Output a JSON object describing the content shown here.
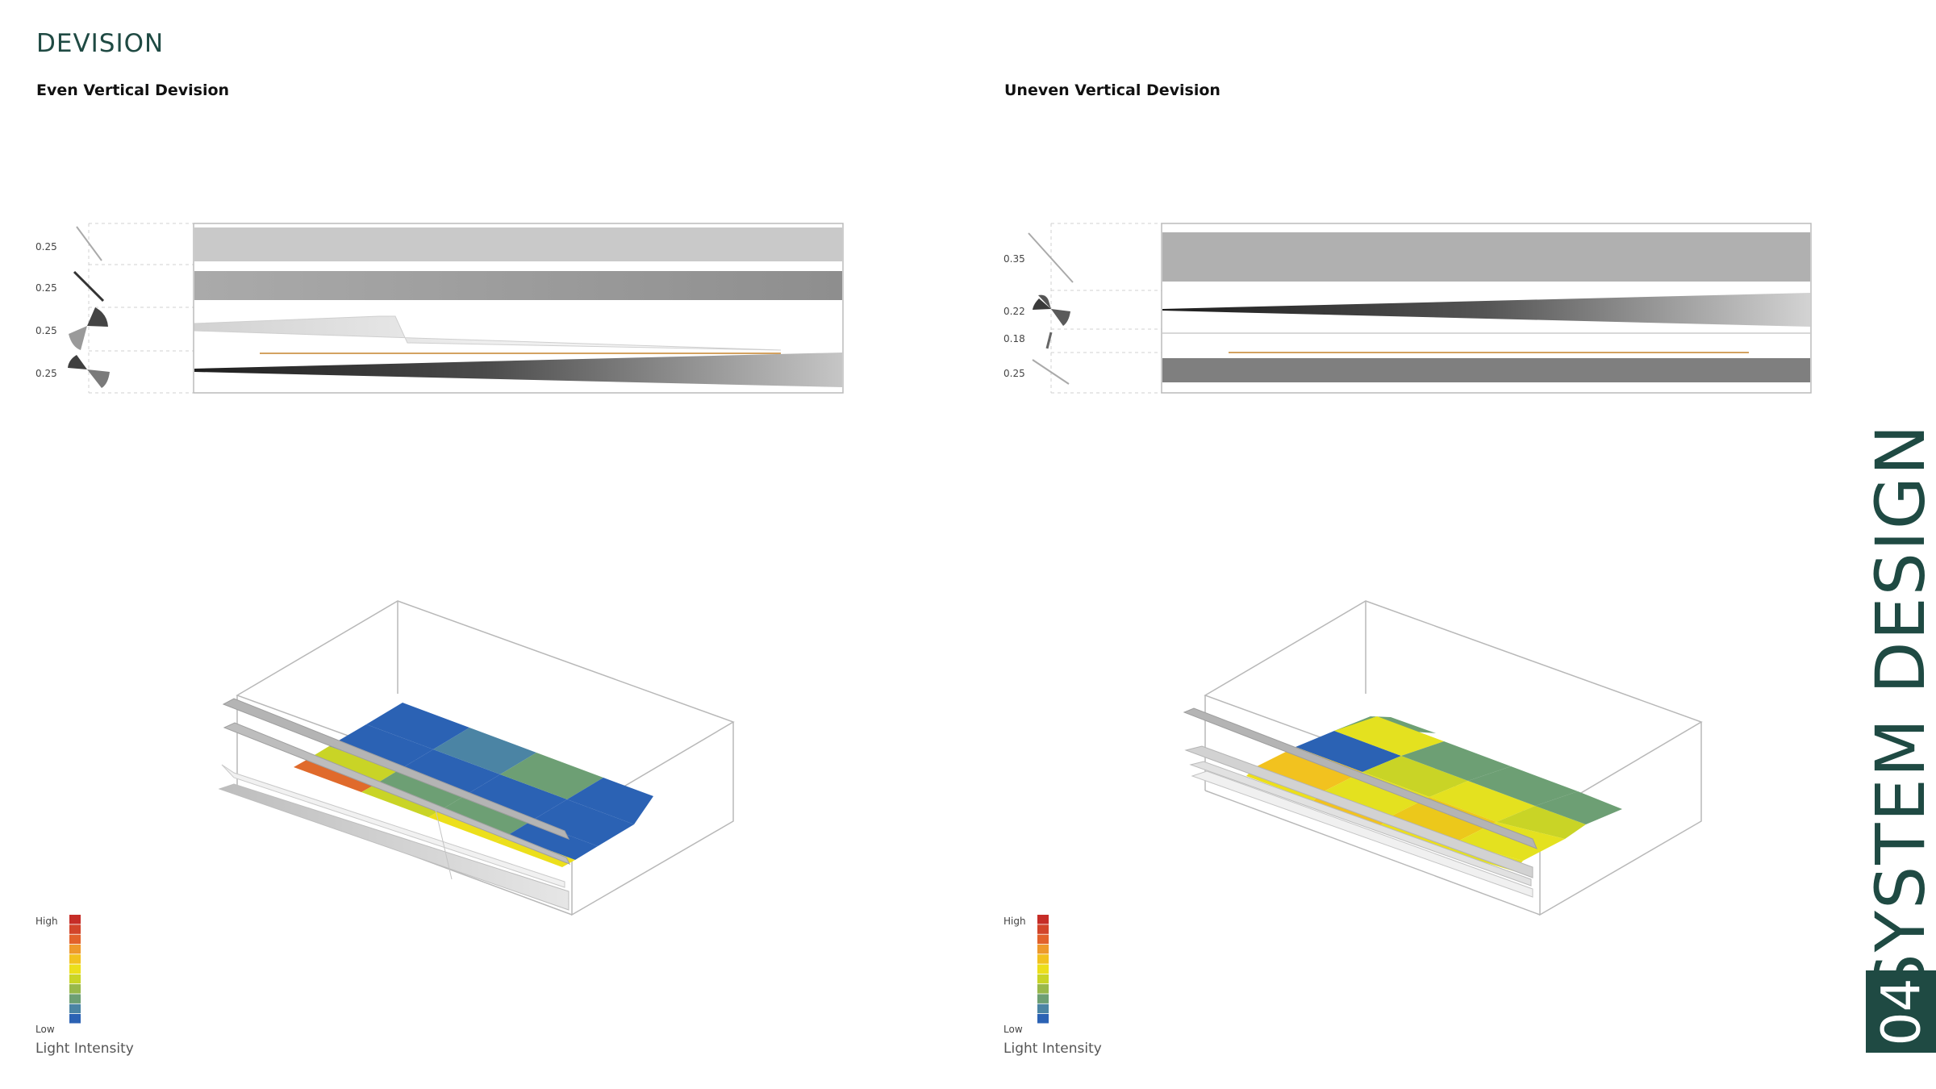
{
  "page": {
    "title": "DEVISION",
    "left_heading": "Even Vertical Devision",
    "right_heading": "Uneven Vertical Devision",
    "section_number": "04",
    "section_title": "SYSTEM DESIGN"
  },
  "left_section": {
    "ratios": [
      "0.25",
      "0.25",
      "0.25",
      "0.25"
    ]
  },
  "right_section": {
    "ratios": [
      "0.35",
      "0.22",
      "0.18",
      "0.25"
    ]
  },
  "legend": {
    "high_label": "High",
    "low_label": "Low",
    "caption": "Light Intensity",
    "colors": [
      "#c62d27",
      "#d2452a",
      "#e2622b",
      "#ee9a2b",
      "#f2c21f",
      "#ecdf1b",
      "#c9d426",
      "#98b84b",
      "#6d9f74",
      "#4b84a4",
      "#2b62b4"
    ]
  },
  "colors": {
    "accent": "#1f4a43",
    "grid_blue": "#2b62b4",
    "grid_green": "#6d9f74",
    "grid_yellow": "#e4e11f",
    "grid_orange": "#e06a2b"
  }
}
